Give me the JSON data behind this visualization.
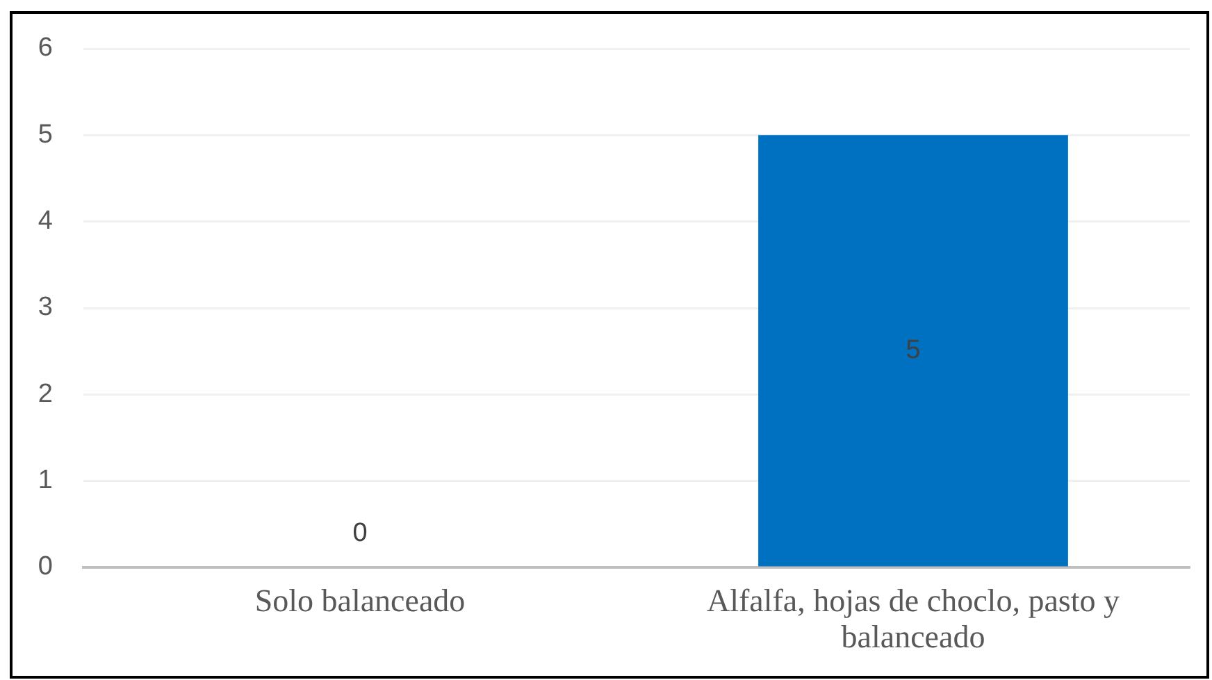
{
  "chart_data": {
    "type": "bar",
    "categories": [
      "Solo balanceado",
      "Alfalfa, hojas de choclo, pasto y balanceado"
    ],
    "values": [
      0,
      5
    ],
    "color": "#0070c0",
    "ylim": [
      0,
      6
    ],
    "yticks": [
      0,
      1,
      2,
      3,
      4,
      5,
      6
    ],
    "grid": "y",
    "data_labels": true
  }
}
